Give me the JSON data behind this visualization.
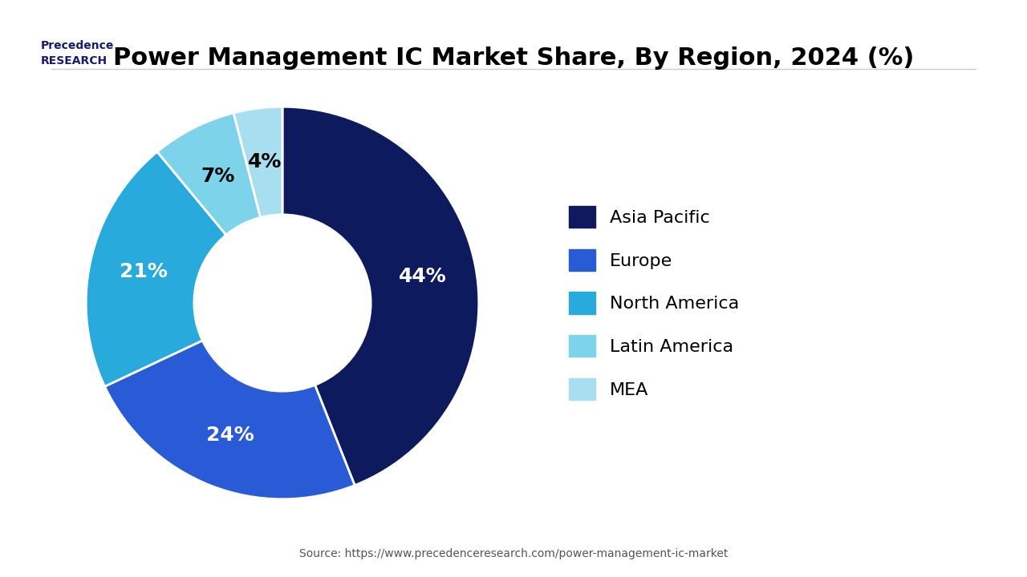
{
  "title": "Power Management IC Market Share, By Region, 2024 (%)",
  "slices": [
    44,
    24,
    21,
    7,
    4
  ],
  "labels": [
    "Asia Pacific",
    "Europe",
    "North America",
    "Latin America",
    "MEA"
  ],
  "colors": [
    "#0d1b5e",
    "#2a5bd7",
    "#29aadc",
    "#7dd4ea",
    "#a8dff0"
  ],
  "pct_labels": [
    "44%",
    "24%",
    "21%",
    "7%",
    "4%"
  ],
  "pct_colors": [
    "white",
    "white",
    "white",
    "black",
    "black"
  ],
  "legend_labels": [
    "Asia Pacific",
    "Europe",
    "North America",
    "Latin America",
    "MEA"
  ],
  "source_text": "Source: https://www.precedenceresearch.com/power-management-ic-market",
  "background_color": "#ffffff",
  "title_fontsize": 22,
  "legend_fontsize": 16,
  "pct_fontsize": 18
}
